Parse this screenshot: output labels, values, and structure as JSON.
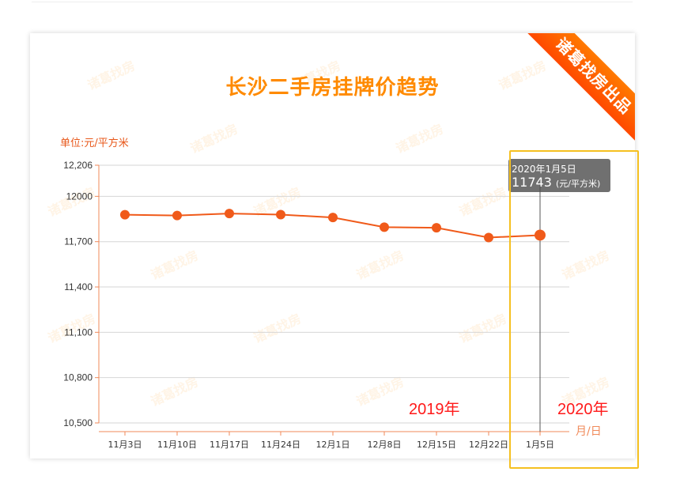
{
  "chart_data": {
    "type": "line",
    "title": "长沙二手房挂牌价趋势",
    "ylabel": "单位:元/平方米",
    "xlabel": "月/日",
    "categories": [
      "11月3日",
      "11月10日",
      "11月17日",
      "11月24日",
      "12月1日",
      "12月8日",
      "12月15日",
      "12月22日",
      "1月5日"
    ],
    "values": [
      11878,
      11873,
      11886,
      11879,
      11860,
      11796,
      11792,
      11727,
      11743
    ],
    "y_ticks": [
      "10,500",
      "10,800",
      "11,100",
      "11,400",
      "11,700",
      "12000",
      "12,206"
    ],
    "y_tick_values": [
      10500,
      10800,
      11100,
      11400,
      11700,
      12000,
      12206
    ],
    "ylim": [
      10500,
      12206
    ],
    "grid": true,
    "line_color": "#f05a1a"
  },
  "ribbon": {
    "text": "诸葛找房出品"
  },
  "watermark": {
    "text": "诸葛找房"
  },
  "tooltip": {
    "date": "2020年1月5日",
    "value": "11743",
    "unit": "(元/平方米)"
  },
  "annotations": {
    "year_left": "2019年",
    "year_right": "2020年"
  },
  "colors": {
    "title": "#ff8a00",
    "axis": "#f08a5a",
    "highlight": "#f5c020",
    "year": "#ff1a1a"
  }
}
